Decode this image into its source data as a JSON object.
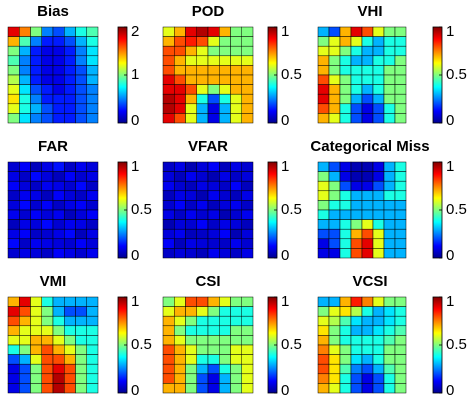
{
  "chart_data": [
    {
      "type": "heatmap",
      "title": "Bias",
      "colormap": "jet",
      "zlim": [
        0,
        2
      ],
      "zticks": [
        0,
        1,
        2
      ],
      "z": [
        [
          1.8,
          1.5,
          1.0,
          0.5,
          0.4,
          0.6,
          0.8,
          0.9
        ],
        [
          1.4,
          0.9,
          0.5,
          0.3,
          0.3,
          0.4,
          0.6,
          0.8
        ],
        [
          1.0,
          0.6,
          0.3,
          0.2,
          0.2,
          0.3,
          0.5,
          0.7
        ],
        [
          0.9,
          0.5,
          0.3,
          0.2,
          0.2,
          0.3,
          0.5,
          0.7
        ],
        [
          1.0,
          0.5,
          0.3,
          0.2,
          0.2,
          0.3,
          0.4,
          0.6
        ],
        [
          1.1,
          0.6,
          0.3,
          0.2,
          0.2,
          0.3,
          0.4,
          0.6
        ],
        [
          1.2,
          0.7,
          0.4,
          0.3,
          0.2,
          0.3,
          0.4,
          0.5
        ],
        [
          1.3,
          0.8,
          0.5,
          0.3,
          0.3,
          0.3,
          0.4,
          0.5
        ],
        [
          1.2,
          0.8,
          0.6,
          0.4,
          0.3,
          0.3,
          0.4,
          0.5
        ],
        [
          1.0,
          0.7,
          0.5,
          0.4,
          0.3,
          0.3,
          0.4,
          0.5
        ]
      ]
    },
    {
      "type": "heatmap",
      "title": "POD",
      "colormap": "jet",
      "zlim": [
        0,
        1
      ],
      "zticks": [
        0,
        0.5,
        1
      ],
      "z": [
        [
          0.6,
          0.7,
          0.9,
          0.95,
          0.9,
          0.7,
          0.5,
          0.5
        ],
        [
          0.7,
          0.8,
          0.85,
          0.8,
          0.6,
          0.5,
          0.5,
          0.5
        ],
        [
          0.8,
          0.8,
          0.7,
          0.6,
          0.5,
          0.5,
          0.5,
          0.5
        ],
        [
          0.8,
          0.7,
          0.6,
          0.6,
          0.6,
          0.6,
          0.6,
          0.6
        ],
        [
          0.8,
          0.7,
          0.7,
          0.7,
          0.7,
          0.7,
          0.7,
          0.7
        ],
        [
          0.9,
          0.8,
          0.7,
          0.7,
          0.7,
          0.7,
          0.7,
          0.7
        ],
        [
          0.9,
          0.9,
          0.8,
          0.6,
          0.5,
          0.6,
          0.7,
          0.7
        ],
        [
          0.95,
          0.9,
          0.7,
          0.4,
          0.2,
          0.4,
          0.6,
          0.7
        ],
        [
          0.95,
          0.9,
          0.6,
          0.3,
          0.1,
          0.3,
          0.6,
          0.7
        ],
        [
          0.9,
          0.8,
          0.6,
          0.3,
          0.1,
          0.3,
          0.6,
          0.7
        ]
      ]
    },
    {
      "type": "heatmap",
      "title": "VHI",
      "colormap": "jet",
      "zlim": [
        0,
        1
      ],
      "zticks": [
        0,
        0.5,
        1
      ],
      "z": [
        [
          0.3,
          0.2,
          0.7,
          0.9,
          0.8,
          0.6,
          0.5,
          0.5
        ],
        [
          0.5,
          0.6,
          0.7,
          0.6,
          0.4,
          0.3,
          0.4,
          0.4
        ],
        [
          0.6,
          0.6,
          0.5,
          0.4,
          0.3,
          0.3,
          0.4,
          0.4
        ],
        [
          0.7,
          0.5,
          0.4,
          0.3,
          0.3,
          0.4,
          0.4,
          0.5
        ],
        [
          0.7,
          0.5,
          0.4,
          0.4,
          0.4,
          0.4,
          0.5,
          0.5
        ],
        [
          0.8,
          0.6,
          0.5,
          0.4,
          0.4,
          0.4,
          0.5,
          0.5
        ],
        [
          0.9,
          0.7,
          0.5,
          0.4,
          0.3,
          0.4,
          0.5,
          0.5
        ],
        [
          0.9,
          0.7,
          0.5,
          0.3,
          0.2,
          0.3,
          0.5,
          0.5
        ],
        [
          0.8,
          0.7,
          0.4,
          0.2,
          0.1,
          0.2,
          0.4,
          0.5
        ],
        [
          0.7,
          0.6,
          0.4,
          0.2,
          0.1,
          0.2,
          0.4,
          0.5
        ]
      ]
    },
    {
      "type": "heatmap",
      "title": "FAR",
      "colormap": "jet",
      "zlim": [
        0,
        1
      ],
      "zticks": [
        0,
        0.5,
        1
      ],
      "z": [
        [
          0.08,
          0.12,
          0.06,
          0.1,
          0.14,
          0.07,
          0.11,
          0.09
        ],
        [
          0.1,
          0.07,
          0.13,
          0.09,
          0.06,
          0.12,
          0.08,
          0.1
        ],
        [
          0.12,
          0.09,
          0.07,
          0.11,
          0.1,
          0.08,
          0.13,
          0.07
        ],
        [
          0.07,
          0.11,
          0.1,
          0.06,
          0.12,
          0.09,
          0.07,
          0.11
        ],
        [
          0.09,
          0.13,
          0.08,
          0.12,
          0.07,
          0.1,
          0.12,
          0.08
        ],
        [
          0.11,
          0.08,
          0.12,
          0.09,
          0.11,
          0.06,
          0.09,
          0.12
        ],
        [
          0.06,
          0.1,
          0.09,
          0.13,
          0.08,
          0.11,
          0.1,
          0.07
        ],
        [
          0.1,
          0.12,
          0.07,
          0.08,
          0.1,
          0.13,
          0.06,
          0.1
        ],
        [
          0.13,
          0.07,
          0.11,
          0.1,
          0.09,
          0.08,
          0.12,
          0.09
        ],
        [
          0.08,
          0.1,
          0.09,
          0.07,
          0.12,
          0.1,
          0.08,
          0.11
        ]
      ]
    },
    {
      "type": "heatmap",
      "title": "VFAR",
      "colormap": "jet",
      "zlim": [
        0,
        1
      ],
      "zticks": [
        0,
        0.5,
        1
      ],
      "z": [
        [
          0.07,
          0.1,
          0.05,
          0.09,
          0.12,
          0.06,
          0.1,
          0.08
        ],
        [
          0.09,
          0.06,
          0.11,
          0.08,
          0.05,
          0.1,
          0.07,
          0.09
        ],
        [
          0.11,
          0.08,
          0.06,
          0.1,
          0.09,
          0.07,
          0.12,
          0.06
        ],
        [
          0.06,
          0.1,
          0.09,
          0.05,
          0.11,
          0.08,
          0.06,
          0.1
        ],
        [
          0.08,
          0.12,
          0.07,
          0.11,
          0.06,
          0.09,
          0.11,
          0.07
        ],
        [
          0.1,
          0.07,
          0.11,
          0.08,
          0.1,
          0.05,
          0.08,
          0.11
        ],
        [
          0.05,
          0.09,
          0.08,
          0.12,
          0.07,
          0.1,
          0.09,
          0.06
        ],
        [
          0.09,
          0.11,
          0.06,
          0.07,
          0.09,
          0.12,
          0.05,
          0.09
        ],
        [
          0.12,
          0.06,
          0.1,
          0.09,
          0.08,
          0.07,
          0.11,
          0.08
        ],
        [
          0.07,
          0.09,
          0.08,
          0.06,
          0.11,
          0.09,
          0.07,
          0.1
        ]
      ]
    },
    {
      "type": "heatmap",
      "title": "Categorical Miss",
      "colormap": "jet",
      "zlim": [
        0,
        1
      ],
      "zticks": [
        0,
        0.5,
        1
      ],
      "z": [
        [
          0.3,
          0.2,
          0.1,
          0.05,
          0.05,
          0.1,
          0.3,
          0.4
        ],
        [
          0.5,
          0.3,
          0.1,
          0.05,
          0.05,
          0.1,
          0.3,
          0.4
        ],
        [
          0.6,
          0.5,
          0.2,
          0.1,
          0.1,
          0.2,
          0.3,
          0.4
        ],
        [
          0.6,
          0.5,
          0.4,
          0.3,
          0.3,
          0.3,
          0.4,
          0.4
        ],
        [
          0.5,
          0.4,
          0.4,
          0.3,
          0.3,
          0.3,
          0.3,
          0.3
        ],
        [
          0.4,
          0.3,
          0.3,
          0.3,
          0.3,
          0.3,
          0.3,
          0.3
        ],
        [
          0.3,
          0.3,
          0.4,
          0.5,
          0.6,
          0.4,
          0.3,
          0.3
        ],
        [
          0.2,
          0.2,
          0.4,
          0.7,
          0.8,
          0.6,
          0.3,
          0.3
        ],
        [
          0.1,
          0.2,
          0.4,
          0.8,
          0.9,
          0.6,
          0.3,
          0.3
        ],
        [
          0.1,
          0.1,
          0.4,
          0.8,
          0.9,
          0.6,
          0.3,
          0.3
        ]
      ]
    },
    {
      "type": "heatmap",
      "title": "VMI",
      "colormap": "jet",
      "zlim": [
        0,
        1
      ],
      "zticks": [
        0,
        0.5,
        1
      ],
      "z": [
        [
          0.7,
          0.9,
          0.6,
          0.4,
          0.3,
          0.3,
          0.3,
          0.3
        ],
        [
          0.9,
          0.8,
          0.6,
          0.5,
          0.3,
          0.2,
          0.2,
          0.3
        ],
        [
          0.8,
          0.7,
          0.6,
          0.5,
          0.4,
          0.3,
          0.3,
          0.3
        ],
        [
          0.7,
          0.6,
          0.6,
          0.6,
          0.5,
          0.4,
          0.4,
          0.4
        ],
        [
          0.6,
          0.6,
          0.7,
          0.7,
          0.6,
          0.5,
          0.4,
          0.4
        ],
        [
          0.4,
          0.5,
          0.7,
          0.8,
          0.7,
          0.6,
          0.5,
          0.4
        ],
        [
          0.2,
          0.3,
          0.6,
          0.8,
          0.8,
          0.7,
          0.5,
          0.4
        ],
        [
          0.1,
          0.2,
          0.5,
          0.8,
          0.9,
          0.8,
          0.5,
          0.4
        ],
        [
          0.1,
          0.2,
          0.5,
          0.8,
          0.95,
          0.8,
          0.5,
          0.4
        ],
        [
          0.1,
          0.2,
          0.5,
          0.8,
          0.95,
          0.8,
          0.5,
          0.4
        ]
      ]
    },
    {
      "type": "heatmap",
      "title": "CSI",
      "colormap": "jet",
      "zlim": [
        0,
        1
      ],
      "zticks": [
        0,
        0.5,
        1
      ],
      "z": [
        [
          0.5,
          0.6,
          0.8,
          0.8,
          0.7,
          0.6,
          0.5,
          0.5
        ],
        [
          0.6,
          0.7,
          0.7,
          0.6,
          0.5,
          0.4,
          0.4,
          0.4
        ],
        [
          0.7,
          0.6,
          0.5,
          0.4,
          0.4,
          0.4,
          0.4,
          0.4
        ],
        [
          0.7,
          0.5,
          0.4,
          0.4,
          0.4,
          0.4,
          0.5,
          0.5
        ],
        [
          0.7,
          0.6,
          0.5,
          0.5,
          0.5,
          0.5,
          0.5,
          0.5
        ],
        [
          0.8,
          0.7,
          0.6,
          0.5,
          0.5,
          0.5,
          0.6,
          0.6
        ],
        [
          0.8,
          0.7,
          0.6,
          0.4,
          0.4,
          0.5,
          0.6,
          0.6
        ],
        [
          0.8,
          0.7,
          0.5,
          0.3,
          0.2,
          0.4,
          0.5,
          0.6
        ],
        [
          0.8,
          0.7,
          0.5,
          0.2,
          0.1,
          0.3,
          0.5,
          0.6
        ],
        [
          0.7,
          0.7,
          0.5,
          0.2,
          0.1,
          0.3,
          0.5,
          0.6
        ]
      ]
    },
    {
      "type": "heatmap",
      "title": "VCSI",
      "colormap": "jet",
      "zlim": [
        0,
        1
      ],
      "zticks": [
        0,
        0.5,
        1
      ],
      "z": [
        [
          0.3,
          0.3,
          0.7,
          0.85,
          0.75,
          0.6,
          0.5,
          0.5
        ],
        [
          0.5,
          0.6,
          0.65,
          0.55,
          0.4,
          0.3,
          0.35,
          0.4
        ],
        [
          0.6,
          0.55,
          0.45,
          0.35,
          0.3,
          0.3,
          0.35,
          0.4
        ],
        [
          0.65,
          0.5,
          0.4,
          0.3,
          0.3,
          0.35,
          0.4,
          0.45
        ],
        [
          0.7,
          0.5,
          0.4,
          0.4,
          0.4,
          0.4,
          0.45,
          0.5
        ],
        [
          0.75,
          0.6,
          0.5,
          0.4,
          0.4,
          0.4,
          0.5,
          0.5
        ],
        [
          0.8,
          0.65,
          0.5,
          0.35,
          0.3,
          0.4,
          0.5,
          0.5
        ],
        [
          0.8,
          0.65,
          0.45,
          0.25,
          0.2,
          0.3,
          0.45,
          0.5
        ],
        [
          0.75,
          0.65,
          0.4,
          0.2,
          0.1,
          0.2,
          0.4,
          0.5
        ],
        [
          0.7,
          0.6,
          0.4,
          0.2,
          0.1,
          0.2,
          0.4,
          0.5
        ]
      ]
    }
  ]
}
